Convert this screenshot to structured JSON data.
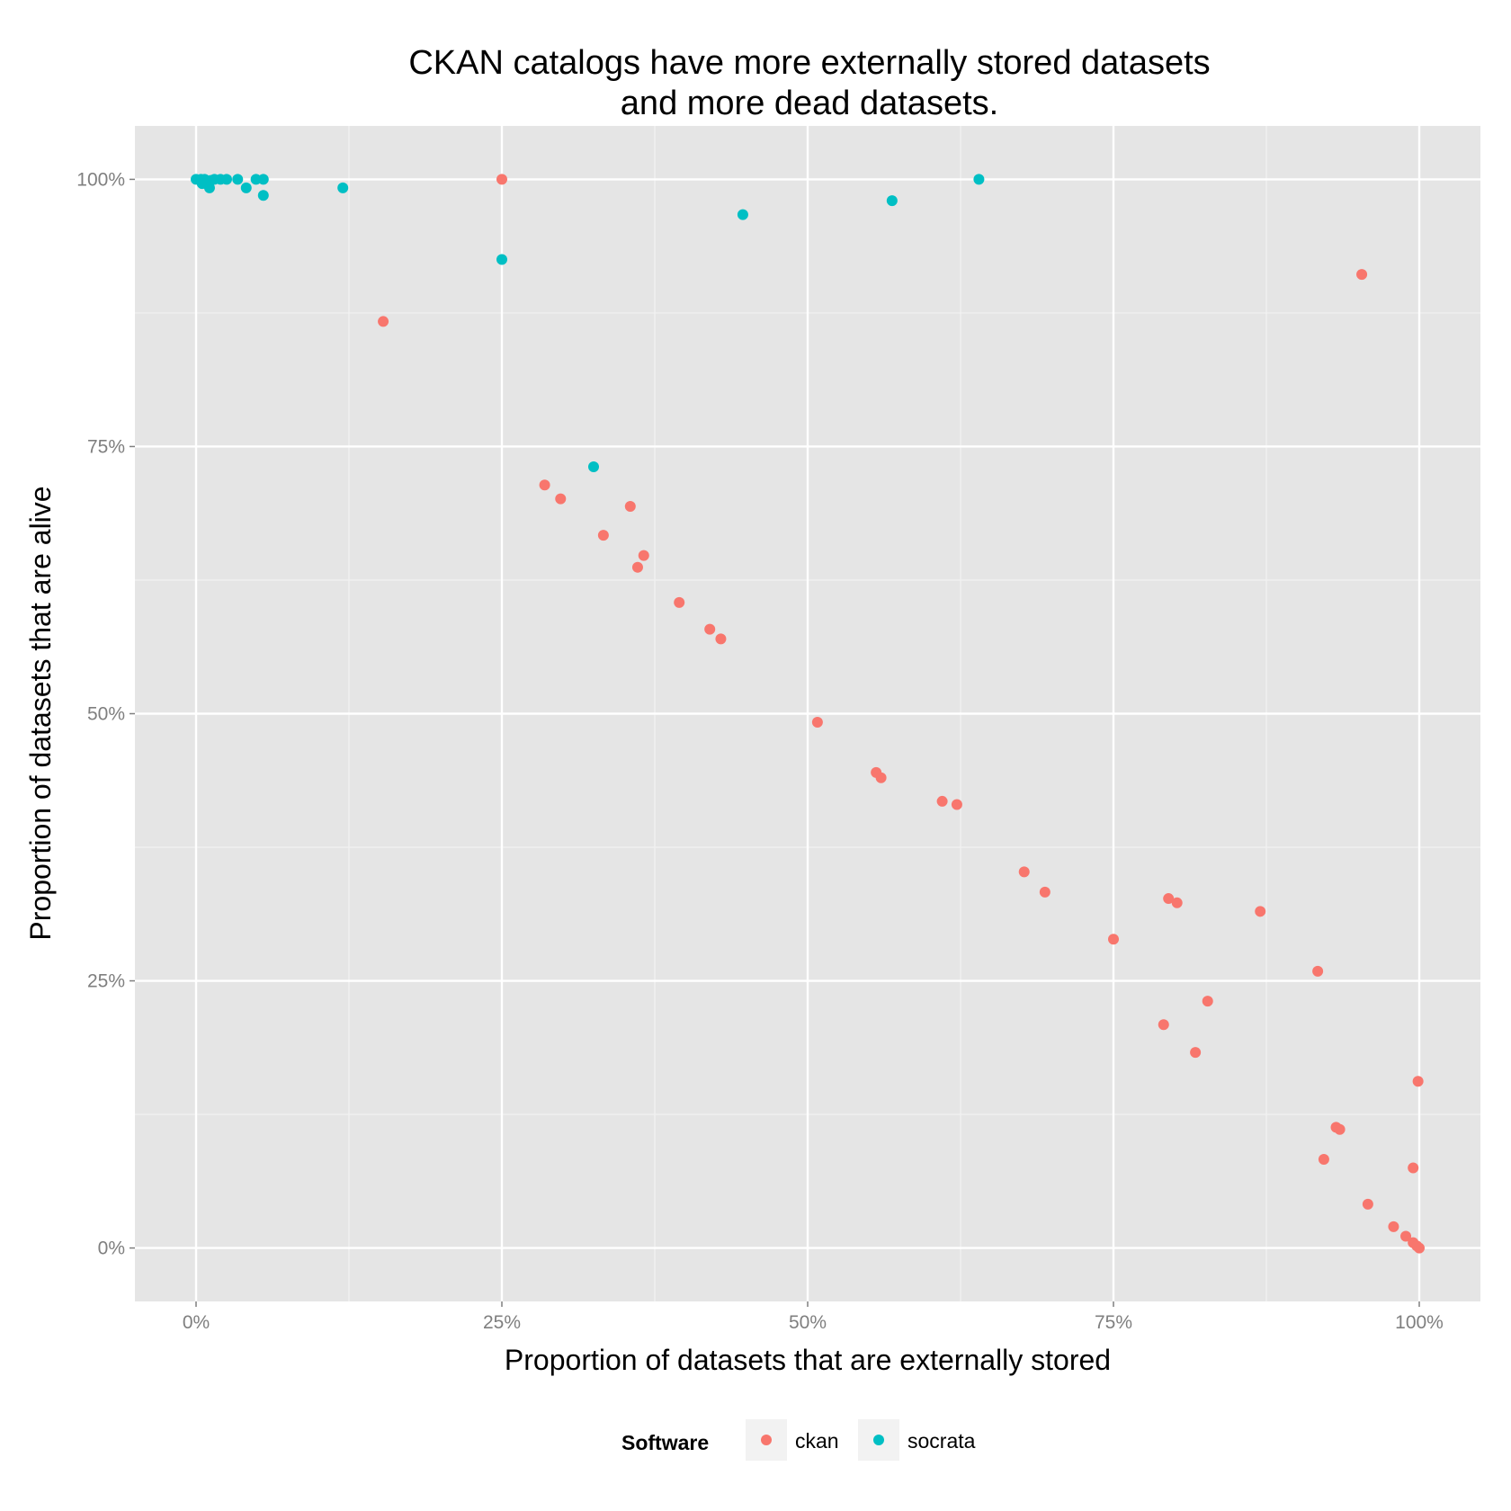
{
  "chart_data": {
    "type": "scatter",
    "title": [
      "CKAN catalogs have more externally stored datasets",
      "and more dead datasets."
    ],
    "xlabel": "Proportion of datasets that are externally stored",
    "ylabel": "Proportion of datasets that are alive",
    "xlim": [
      -0.05,
      1.05
    ],
    "ylim": [
      -0.05,
      1.05
    ],
    "x_ticks": [
      0,
      0.25,
      0.5,
      0.75,
      1.0
    ],
    "x_tick_labels": [
      "0%",
      "25%",
      "50%",
      "75%",
      "100%"
    ],
    "y_ticks": [
      0,
      0.25,
      0.5,
      0.75,
      1.0
    ],
    "y_tick_labels": [
      "0%",
      "25%",
      "50%",
      "75%",
      "100%"
    ],
    "grid": true,
    "legend": {
      "title": "Software",
      "position": "bottom",
      "entries": [
        {
          "label": "ckan",
          "color": "#F8766D"
        },
        {
          "label": "socrata",
          "color": "#00BFC4"
        }
      ]
    },
    "series": [
      {
        "name": "ckan",
        "color": "#F8766D",
        "points": [
          [
            0.25,
            1.0
          ],
          [
            0.153,
            0.867
          ],
          [
            0.953,
            0.911
          ],
          [
            0.285,
            0.714
          ],
          [
            0.298,
            0.701
          ],
          [
            0.355,
            0.694
          ],
          [
            0.333,
            0.667
          ],
          [
            0.366,
            0.648
          ],
          [
            0.361,
            0.637
          ],
          [
            0.395,
            0.604
          ],
          [
            0.42,
            0.579
          ],
          [
            0.429,
            0.57
          ],
          [
            0.508,
            0.492
          ],
          [
            0.556,
            0.445
          ],
          [
            0.56,
            0.44
          ],
          [
            0.61,
            0.418
          ],
          [
            0.622,
            0.415
          ],
          [
            0.677,
            0.352
          ],
          [
            0.694,
            0.333
          ],
          [
            0.75,
            0.289
          ],
          [
            0.795,
            0.327
          ],
          [
            0.802,
            0.323
          ],
          [
            0.87,
            0.315
          ],
          [
            0.917,
            0.259
          ],
          [
            0.791,
            0.209
          ],
          [
            0.827,
            0.231
          ],
          [
            0.817,
            0.183
          ],
          [
            0.999,
            0.156
          ],
          [
            0.932,
            0.113
          ],
          [
            0.935,
            0.111
          ],
          [
            0.922,
            0.083
          ],
          [
            0.995,
            0.075
          ],
          [
            0.958,
            0.041
          ],
          [
            0.979,
            0.02
          ],
          [
            0.989,
            0.011
          ],
          [
            0.995,
            0.005
          ],
          [
            0.998,
            0.002
          ],
          [
            1.0,
            0.0
          ]
        ]
      },
      {
        "name": "socrata",
        "color": "#00BFC4",
        "points": [
          [
            0.0,
            1.0
          ],
          [
            0.004,
            1.0
          ],
          [
            0.007,
            1.0
          ],
          [
            0.005,
            0.996
          ],
          [
            0.009,
            0.997
          ],
          [
            0.012,
            0.999
          ],
          [
            0.015,
            1.0
          ],
          [
            0.011,
            0.992
          ],
          [
            0.02,
            1.0
          ],
          [
            0.025,
            1.0
          ],
          [
            0.034,
            1.0
          ],
          [
            0.041,
            0.992
          ],
          [
            0.049,
            1.0
          ],
          [
            0.055,
            1.0
          ],
          [
            0.055,
            0.985
          ],
          [
            0.12,
            0.992
          ],
          [
            0.25,
            0.925
          ],
          [
            0.447,
            0.967
          ],
          [
            0.569,
            0.98
          ],
          [
            0.64,
            1.0
          ],
          [
            0.325,
            0.731
          ]
        ]
      }
    ]
  }
}
